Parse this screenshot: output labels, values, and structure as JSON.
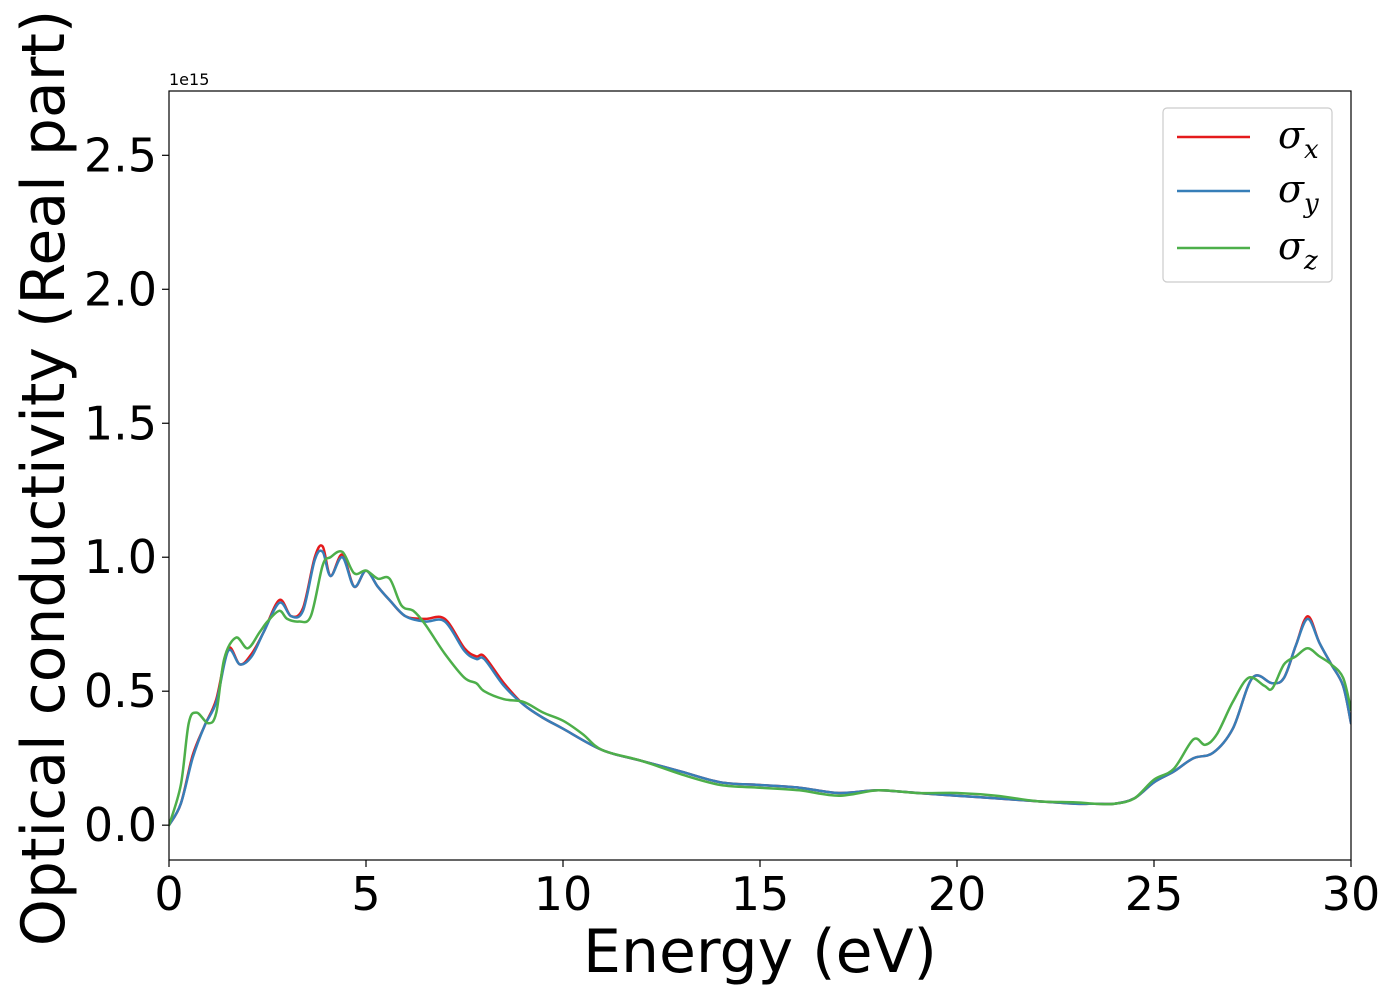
{
  "chart_data": {
    "type": "line",
    "xlabel": "Energy (eV)",
    "ylabel": "Optical conductivity (Real part)",
    "y_offset_label": "1e15",
    "xlim": [
      0,
      30
    ],
    "ylim": [
      -0.13,
      2.74
    ],
    "xticks": [
      0,
      5,
      10,
      15,
      20,
      25,
      30
    ],
    "xtick_labels": [
      "0",
      "5",
      "10",
      "15",
      "20",
      "25",
      "30"
    ],
    "yticks": [
      0.0,
      0.5,
      1.0,
      1.5,
      2.0,
      2.5
    ],
    "ytick_labels": [
      "0.0",
      "0.5",
      "1.0",
      "1.5",
      "2.0",
      "2.5"
    ],
    "grid": false,
    "legend_position": "top-right",
    "series": [
      {
        "name": "σx",
        "symbol": "σ",
        "subscript": "x",
        "color": "#e41a1c",
        "x": [
          0,
          0.3,
          0.6,
          0.9,
          1.2,
          1.5,
          1.8,
          2.1,
          2.4,
          2.8,
          3.1,
          3.4,
          3.7,
          3.9,
          4.1,
          4.4,
          4.7,
          5.0,
          5.3,
          5.6,
          6.0,
          6.5,
          7.0,
          7.5,
          7.8,
          8.0,
          8.5,
          9.0,
          9.5,
          10.0,
          11.0,
          12.0,
          13.0,
          14.0,
          15.0,
          16.0,
          17.0,
          18.0,
          19.0,
          20.0,
          21.0,
          22.0,
          23.0,
          23.5,
          24.0,
          24.5,
          25.0,
          25.5,
          26.0,
          26.5,
          27.0,
          27.5,
          28.0,
          28.3,
          28.6,
          28.9,
          29.2,
          29.5,
          29.8,
          30.0
        ],
        "y": [
          0.0,
          0.08,
          0.26,
          0.37,
          0.47,
          0.66,
          0.6,
          0.64,
          0.72,
          0.84,
          0.78,
          0.81,
          1.0,
          1.04,
          0.93,
          1.01,
          0.89,
          0.95,
          0.89,
          0.84,
          0.78,
          0.77,
          0.77,
          0.66,
          0.63,
          0.63,
          0.53,
          0.45,
          0.4,
          0.36,
          0.28,
          0.24,
          0.2,
          0.16,
          0.15,
          0.14,
          0.12,
          0.13,
          0.12,
          0.11,
          0.1,
          0.09,
          0.08,
          0.08,
          0.08,
          0.1,
          0.16,
          0.2,
          0.25,
          0.27,
          0.36,
          0.55,
          0.53,
          0.55,
          0.67,
          0.78,
          0.68,
          0.6,
          0.52,
          0.38
        ]
      },
      {
        "name": "σy",
        "symbol": "σ",
        "subscript": "y",
        "color": "#377eb8",
        "x": [
          0,
          0.3,
          0.6,
          0.9,
          1.2,
          1.5,
          1.8,
          2.1,
          2.4,
          2.8,
          3.1,
          3.4,
          3.7,
          3.9,
          4.1,
          4.4,
          4.7,
          5.0,
          5.3,
          5.6,
          6.0,
          6.5,
          7.0,
          7.5,
          7.8,
          8.0,
          8.5,
          9.0,
          9.5,
          10.0,
          11.0,
          12.0,
          13.0,
          14.0,
          15.0,
          16.0,
          17.0,
          18.0,
          19.0,
          20.0,
          21.0,
          22.0,
          23.0,
          23.5,
          24.0,
          24.5,
          25.0,
          25.5,
          26.0,
          26.5,
          27.0,
          27.5,
          28.0,
          28.3,
          28.6,
          28.9,
          29.2,
          29.5,
          29.8,
          30.0
        ],
        "y": [
          0.0,
          0.08,
          0.25,
          0.37,
          0.46,
          0.65,
          0.6,
          0.63,
          0.72,
          0.83,
          0.78,
          0.8,
          0.99,
          1.02,
          0.93,
          1.0,
          0.89,
          0.95,
          0.89,
          0.84,
          0.78,
          0.76,
          0.76,
          0.65,
          0.62,
          0.62,
          0.52,
          0.45,
          0.4,
          0.36,
          0.28,
          0.24,
          0.2,
          0.16,
          0.15,
          0.14,
          0.12,
          0.13,
          0.12,
          0.11,
          0.1,
          0.09,
          0.08,
          0.08,
          0.08,
          0.1,
          0.16,
          0.2,
          0.25,
          0.27,
          0.36,
          0.55,
          0.53,
          0.55,
          0.67,
          0.77,
          0.68,
          0.6,
          0.52,
          0.38
        ]
      },
      {
        "name": "σz",
        "symbol": "σ",
        "subscript": "z",
        "color": "#4daf4a",
        "x": [
          0,
          0.3,
          0.5,
          0.7,
          1.0,
          1.2,
          1.4,
          1.7,
          2.0,
          2.3,
          2.5,
          2.8,
          3.0,
          3.3,
          3.6,
          3.9,
          4.1,
          4.4,
          4.7,
          5.0,
          5.3,
          5.6,
          5.9,
          6.2,
          6.5,
          7.0,
          7.5,
          7.8,
          8.0,
          8.5,
          9.0,
          9.5,
          10.0,
          10.5,
          11.0,
          12.0,
          13.0,
          14.0,
          15.0,
          16.0,
          17.0,
          18.0,
          19.0,
          20.0,
          21.0,
          22.0,
          23.0,
          23.5,
          24.0,
          24.5,
          25.0,
          25.5,
          26.0,
          26.3,
          26.6,
          27.0,
          27.4,
          27.8,
          28.0,
          28.3,
          28.6,
          28.9,
          29.2,
          29.5,
          29.8,
          30.0
        ],
        "y": [
          0.0,
          0.15,
          0.38,
          0.42,
          0.38,
          0.42,
          0.62,
          0.7,
          0.66,
          0.72,
          0.76,
          0.8,
          0.77,
          0.76,
          0.78,
          0.97,
          1.0,
          1.02,
          0.94,
          0.95,
          0.92,
          0.92,
          0.82,
          0.8,
          0.75,
          0.64,
          0.55,
          0.53,
          0.5,
          0.47,
          0.46,
          0.42,
          0.39,
          0.34,
          0.28,
          0.24,
          0.19,
          0.15,
          0.14,
          0.13,
          0.11,
          0.13,
          0.12,
          0.12,
          0.11,
          0.09,
          0.085,
          0.08,
          0.08,
          0.1,
          0.17,
          0.21,
          0.32,
          0.3,
          0.34,
          0.46,
          0.55,
          0.52,
          0.51,
          0.6,
          0.63,
          0.66,
          0.63,
          0.6,
          0.55,
          0.43
        ]
      }
    ]
  }
}
